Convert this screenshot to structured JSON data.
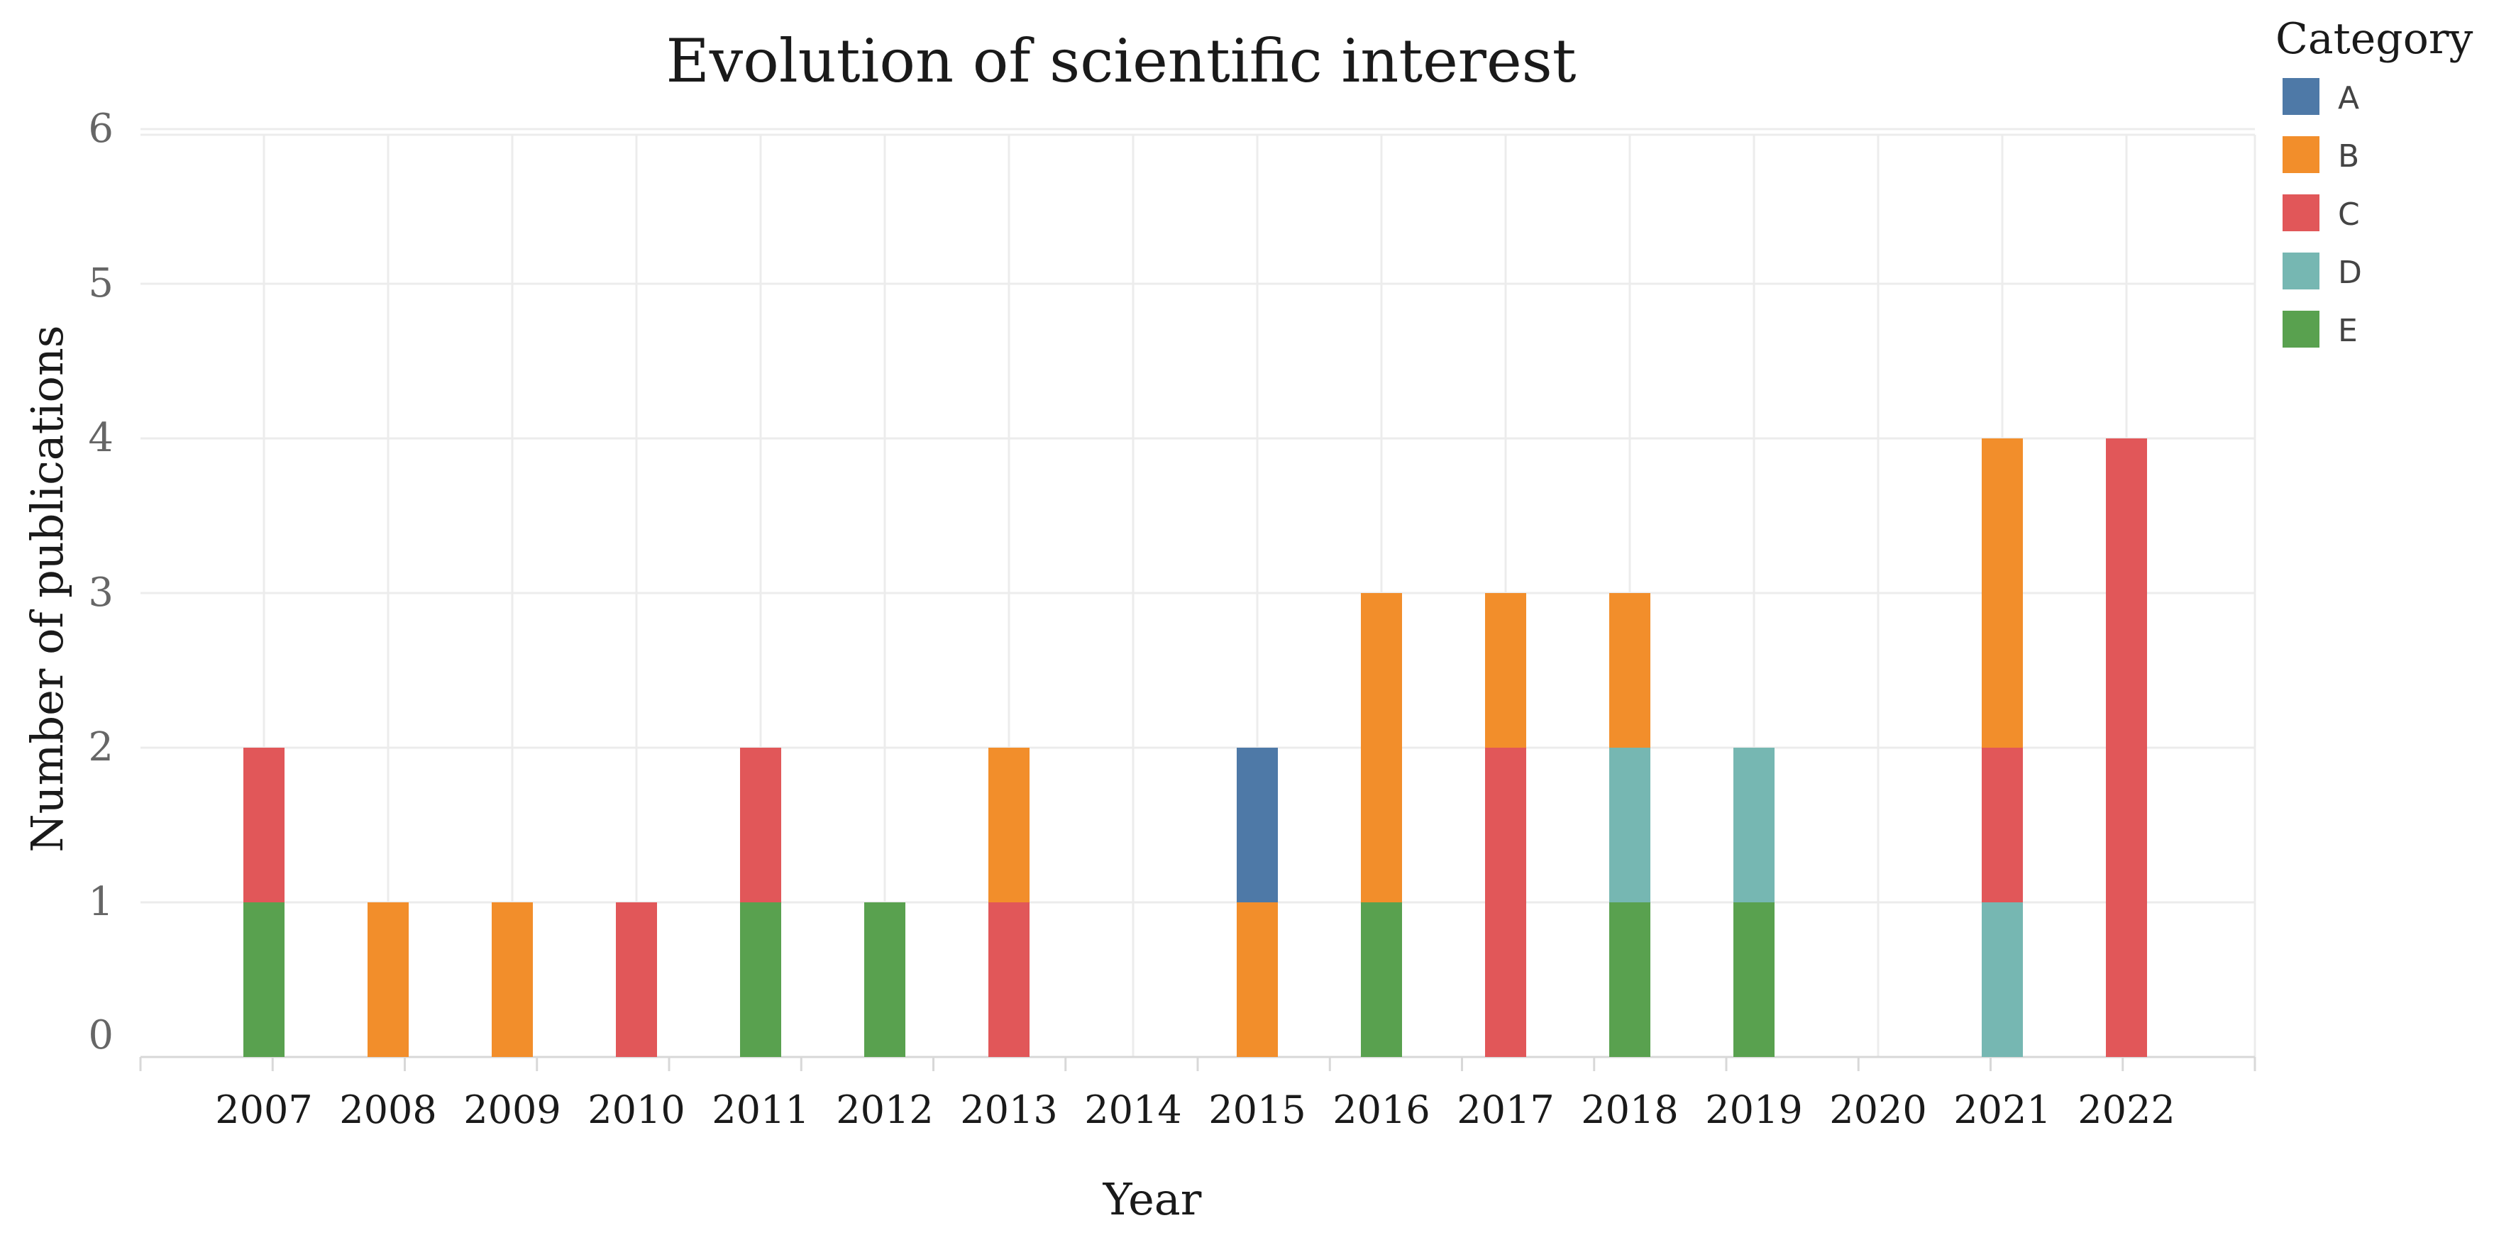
{
  "chart_data": {
    "type": "bar",
    "stacked": true,
    "title": "Evolution of scientific interest",
    "xlabel": "Year",
    "ylabel": "Number of publications",
    "categories": [
      "2007",
      "2008",
      "2009",
      "2010",
      "2011",
      "2012",
      "2013",
      "2014",
      "2015",
      "2016",
      "2017",
      "2018",
      "2019",
      "2020",
      "2021",
      "2022"
    ],
    "ylim": [
      0,
      6
    ],
    "yticks": [
      0,
      1,
      2,
      3,
      4,
      5,
      6
    ],
    "grid": true,
    "legend": {
      "title": "Category",
      "position": "top-right"
    },
    "series": [
      {
        "name": "E",
        "color": "#59a14f",
        "values": [
          1,
          0,
          0,
          0,
          1,
          1,
          0,
          0,
          0,
          1,
          0,
          1,
          1,
          0,
          0,
          0
        ]
      },
      {
        "name": "D",
        "color": "#76b7b2",
        "values": [
          0,
          0,
          0,
          0,
          0,
          0,
          0,
          0,
          0,
          0,
          0,
          1,
          1,
          0,
          1,
          0
        ]
      },
      {
        "name": "C",
        "color": "#e15759",
        "values": [
          1,
          0,
          0,
          1,
          1,
          0,
          1,
          0,
          0,
          0,
          2,
          0,
          0,
          0,
          1,
          4
        ]
      },
      {
        "name": "B",
        "color": "#f28e2b",
        "values": [
          0,
          1,
          1,
          0,
          0,
          0,
          1,
          0,
          1,
          2,
          1,
          1,
          0,
          0,
          2,
          0
        ]
      },
      {
        "name": "A",
        "color": "#4e79a7",
        "values": [
          0,
          0,
          0,
          0,
          0,
          0,
          0,
          0,
          1,
          0,
          0,
          0,
          0,
          0,
          0,
          0
        ]
      }
    ],
    "legend_order": [
      "A",
      "B",
      "C",
      "D",
      "E"
    ]
  }
}
